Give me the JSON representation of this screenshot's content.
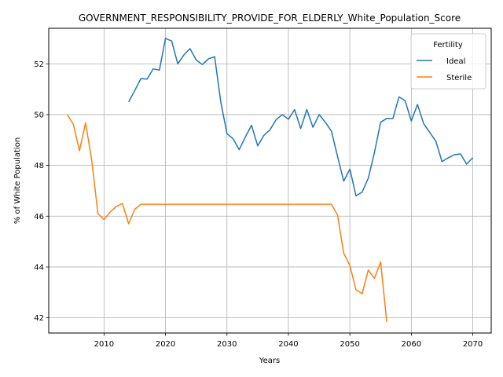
{
  "chart_data": {
    "type": "line",
    "title": "GOVERNMENT_RESPONSIBILITY_PROVIDE_FOR_ELDERLY_White_Population_Score",
    "xlabel": "Years",
    "ylabel": "% of White Population",
    "xlim": [
      2001,
      2073
    ],
    "ylim": [
      41.4,
      53.4
    ],
    "xticks": [
      2010,
      2020,
      2030,
      2040,
      2050,
      2060,
      2070
    ],
    "yticks": [
      42,
      44,
      46,
      48,
      50,
      52
    ],
    "grid": true,
    "legend": {
      "title": "Fertility",
      "position": "top-right"
    },
    "series": [
      {
        "name": "Ideal",
        "color": "#1f77b4",
        "x": [
          2014,
          2015,
          2016,
          2017,
          2018,
          2019,
          2020,
          2021,
          2022,
          2023,
          2024,
          2025,
          2026,
          2027,
          2028,
          2029,
          2030,
          2031,
          2032,
          2033,
          2034,
          2035,
          2036,
          2037,
          2038,
          2039,
          2040,
          2041,
          2042,
          2043,
          2044,
          2045,
          2046,
          2047,
          2048,
          2049,
          2050,
          2051,
          2052,
          2053,
          2054,
          2055,
          2056,
          2057,
          2058,
          2059,
          2060,
          2061,
          2062,
          2063,
          2064,
          2065,
          2066,
          2067,
          2068,
          2069,
          2070
        ],
        "values": [
          50.5,
          50.95,
          51.42,
          51.4,
          51.8,
          51.75,
          53.0,
          52.9,
          52.0,
          52.35,
          52.6,
          52.15,
          51.97,
          52.2,
          52.28,
          50.5,
          49.25,
          49.05,
          48.62,
          49.12,
          49.58,
          48.77,
          49.18,
          49.4,
          49.8,
          50.0,
          49.82,
          50.2,
          49.45,
          50.2,
          49.5,
          50.0,
          49.7,
          49.35,
          48.35,
          47.38,
          47.85,
          46.8,
          46.95,
          47.5,
          48.5,
          49.7,
          49.85,
          49.85,
          50.7,
          50.55,
          49.75,
          50.4,
          49.65,
          49.3,
          48.95,
          48.15,
          48.3,
          48.42,
          48.45,
          48.05,
          48.3
        ]
      },
      {
        "name": "Sterile",
        "color": "#ff7f0e",
        "x": [
          2004,
          2005,
          2006,
          2007,
          2008,
          2009,
          2010,
          2011,
          2012,
          2013,
          2014,
          2015,
          2016,
          2017,
          2018,
          2019,
          2020,
          2021,
          2022,
          2023,
          2024,
          2025,
          2026,
          2027,
          2028,
          2029,
          2030,
          2031,
          2032,
          2033,
          2034,
          2035,
          2036,
          2037,
          2038,
          2039,
          2040,
          2041,
          2042,
          2043,
          2044,
          2045,
          2046,
          2047,
          2048,
          2049,
          2050,
          2051,
          2052,
          2053,
          2054,
          2055,
          2056
        ],
        "values": [
          50.0,
          49.62,
          48.58,
          49.68,
          48.2,
          46.1,
          45.87,
          46.17,
          46.38,
          46.5,
          45.7,
          46.27,
          46.47,
          46.47,
          46.47,
          46.47,
          46.47,
          46.47,
          46.47,
          46.47,
          46.47,
          46.47,
          46.47,
          46.47,
          46.47,
          46.47,
          46.47,
          46.47,
          46.47,
          46.47,
          46.47,
          46.47,
          46.47,
          46.47,
          46.47,
          46.47,
          46.47,
          46.47,
          46.47,
          46.47,
          46.47,
          46.47,
          46.47,
          46.47,
          46.05,
          44.55,
          44.05,
          43.1,
          42.95,
          43.88,
          43.55,
          44.2,
          41.83
        ]
      }
    ]
  }
}
